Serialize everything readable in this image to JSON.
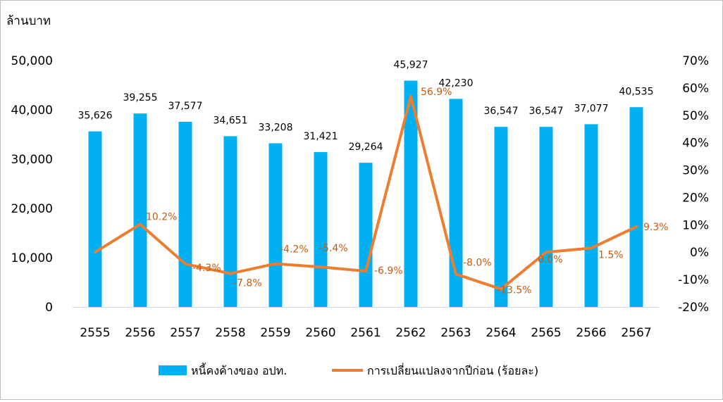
{
  "chart_data": {
    "type": "bar",
    "unit_label": "ล้านบาท",
    "categories": [
      "2555",
      "2556",
      "2557",
      "2558",
      "2559",
      "2560",
      "2561",
      "2562",
      "2563",
      "2564",
      "2565",
      "2566",
      "2567"
    ],
    "series": [
      {
        "name": "หนี้คงค้างของ  อปท.",
        "type": "bar",
        "axis": "left",
        "color": "#00b0f0",
        "values": [
          35626,
          39255,
          37577,
          34651,
          33208,
          31421,
          29264,
          45927,
          42230,
          36547,
          36547,
          37077,
          40535
        ],
        "labels": [
          "35,626",
          "39,255",
          "37,577",
          "34,651",
          "33,208",
          "31,421",
          "29,264",
          "45,927",
          "42,230",
          "36,547",
          "36,547",
          "37,077",
          "40,535"
        ]
      },
      {
        "name": "การเปลี่ยนแปลงจากปีก่อน (ร้อยละ)",
        "type": "line",
        "axis": "right",
        "color": "#ed7d31",
        "values": [
          0,
          10.2,
          -4.3,
          -7.8,
          -4.2,
          -5.4,
          -6.9,
          56.9,
          -8.0,
          -13.5,
          0.0,
          1.5,
          9.3
        ],
        "labels": [
          "",
          "10.2%",
          "-4.3%",
          "-7.8%",
          "-4.2%",
          "-5.4%",
          "-6.9%",
          "56.9%",
          "-8.0%",
          "-13.5%",
          "0.0%",
          "1.5%",
          "9.3%"
        ]
      }
    ],
    "y_left": {
      "min": 0,
      "max": 50000,
      "ticks": [
        0,
        10000,
        20000,
        30000,
        40000,
        50000
      ],
      "tick_labels": [
        "0",
        "10,000",
        "20,000",
        "30,000",
        "40,000",
        "50,000"
      ]
    },
    "y_right": {
      "min": -20,
      "max": 70,
      "ticks": [
        -20,
        -10,
        0,
        10,
        20,
        30,
        40,
        50,
        60,
        70
      ],
      "tick_labels": [
        "-20%",
        "-10%",
        "0%",
        "10%",
        "20%",
        "30%",
        "40%",
        "50%",
        "60%",
        "70%"
      ]
    },
    "grid": false,
    "legend_position": "bottom"
  }
}
